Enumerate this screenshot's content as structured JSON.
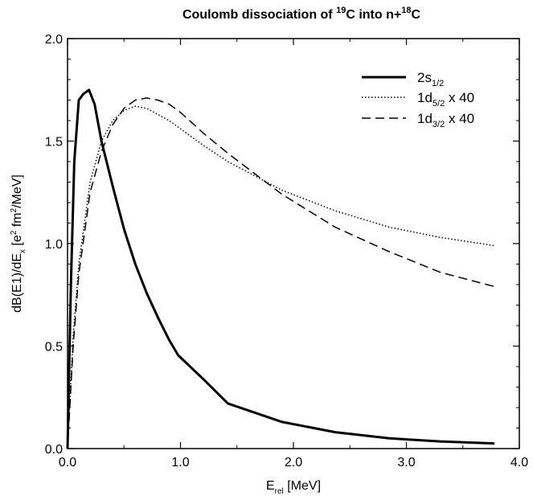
{
  "chart_data": {
    "type": "line",
    "title": {
      "prefix": "Coulomb dissociation of ",
      "iso1_mass": "19",
      "iso1_symbol": "C",
      "middle": " into  n+",
      "iso2_mass": "18",
      "iso2_symbol": "C"
    },
    "xlabel": {
      "main": "E",
      "sub": "rel",
      "rest": "  [MeV]"
    },
    "ylabel": {
      "part1": "dB(E1)/dE",
      "sub": "x",
      "part2": "  [e",
      "sup1": "2",
      "part3": " fm",
      "sup2": "2",
      "part4": "/MeV]"
    },
    "xlim": [
      0,
      4
    ],
    "ylim": [
      0,
      2
    ],
    "xticks": [
      "0.0",
      "1.0",
      "2.0",
      "3.0",
      "4.0"
    ],
    "yticks": [
      "0.0",
      "0.5",
      "1.0",
      "1.5",
      "2.0"
    ],
    "grid": false,
    "legend_position": "top-right",
    "series": [
      {
        "name": {
          "main": "2s",
          "sub": "1/2",
          "rest": ""
        },
        "style": "solid",
        "color": "#000000",
        "x": [
          0.0,
          0.03,
          0.06,
          0.1,
          0.14,
          0.19,
          0.24,
          0.3,
          0.4,
          0.5,
          0.6,
          0.7,
          0.8,
          0.9,
          0.98,
          1.2,
          1.42,
          1.9,
          2.37,
          2.85,
          3.3,
          3.78
        ],
        "y": [
          0.0,
          0.8,
          1.4,
          1.7,
          1.73,
          1.75,
          1.68,
          1.5,
          1.28,
          1.07,
          0.9,
          0.76,
          0.64,
          0.53,
          0.455,
          0.34,
          0.22,
          0.13,
          0.08,
          0.05,
          0.035,
          0.025
        ]
      },
      {
        "name": {
          "main": "1d",
          "sub": "5/2",
          "rest": " x 40"
        },
        "style": "dotted",
        "color": "#000000",
        "x": [
          0.0,
          0.05,
          0.1,
          0.2,
          0.3,
          0.4,
          0.5,
          0.6,
          0.7,
          0.8,
          0.9,
          1.0,
          1.2,
          1.42,
          1.9,
          2.37,
          2.85,
          3.3,
          3.78
        ],
        "y": [
          0.0,
          0.55,
          0.9,
          1.3,
          1.5,
          1.6,
          1.65,
          1.67,
          1.66,
          1.63,
          1.6,
          1.56,
          1.48,
          1.4,
          1.26,
          1.16,
          1.08,
          1.03,
          0.99
        ]
      },
      {
        "name": {
          "main": "1d",
          "sub": "3/2",
          "rest": " x 40"
        },
        "style": "dashed",
        "color": "#000000",
        "x": [
          0.0,
          0.05,
          0.1,
          0.2,
          0.3,
          0.4,
          0.5,
          0.6,
          0.7,
          0.8,
          0.9,
          1.0,
          1.2,
          1.42,
          1.9,
          2.37,
          2.85,
          3.3,
          3.78
        ],
        "y": [
          0.0,
          0.5,
          0.85,
          1.25,
          1.45,
          1.58,
          1.66,
          1.7,
          1.71,
          1.7,
          1.68,
          1.64,
          1.54,
          1.44,
          1.24,
          1.08,
          0.96,
          0.86,
          0.79
        ]
      }
    ]
  }
}
